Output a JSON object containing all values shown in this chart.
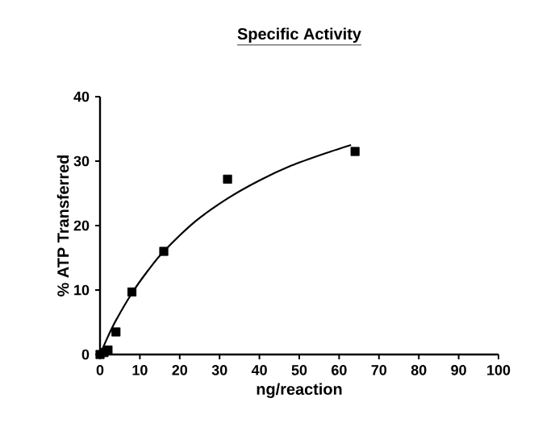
{
  "chart_data": {
    "type": "scatter",
    "title": "Specific Activity",
    "xlabel": "ng/reaction",
    "ylabel": "% ATP Transferred",
    "xlim": [
      0,
      100
    ],
    "xticks": [
      0,
      10,
      20,
      30,
      40,
      50,
      60,
      70,
      80,
      90,
      100
    ],
    "ylim": [
      0,
      40
    ],
    "yticks": [
      0,
      10,
      20,
      30,
      40
    ],
    "series": [
      {
        "color": "#000000",
        "marker": "square",
        "x": [
          0,
          1,
          2,
          4,
          8,
          16,
          32,
          64
        ],
        "values": [
          0,
          0.3,
          0.7,
          3.5,
          9.7,
          16,
          27.2,
          31.5
        ]
      },
      {
        "type": "line",
        "color": "#000000",
        "marker": "none",
        "x": [
          0,
          2,
          4,
          8,
          12,
          16,
          24,
          32,
          40,
          48,
          56,
          63
        ],
        "values": [
          0,
          2.8,
          5.3,
          9.5,
          13.0,
          16.0,
          20.7,
          24.2,
          27.0,
          29.3,
          31.1,
          32.5
        ]
      }
    ]
  }
}
